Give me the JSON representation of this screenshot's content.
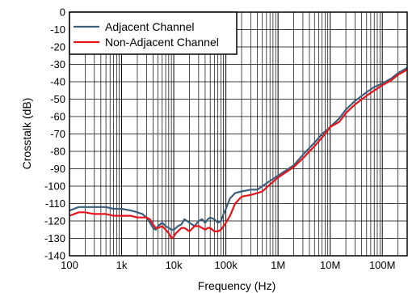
{
  "chart_data": {
    "type": "line",
    "title": "",
    "xlabel": "Frequency (Hz)",
    "ylabel": "Crosstalk (dB)",
    "x_scale": "log",
    "xlim": [
      100,
      300000000
    ],
    "ylim": [
      -140,
      0
    ],
    "grid": true,
    "legend_position": "top-left",
    "x_ticks": [
      {
        "value": 100,
        "label": "100"
      },
      {
        "value": 1000,
        "label": "1k"
      },
      {
        "value": 10000,
        "label": "10k"
      },
      {
        "value": 100000,
        "label": "100k"
      },
      {
        "value": 1000000,
        "label": "1M"
      },
      {
        "value": 10000000,
        "label": "10M"
      },
      {
        "value": 100000000,
        "label": "100M"
      }
    ],
    "y_ticks": [
      {
        "value": 0,
        "label": "0"
      },
      {
        "value": -10,
        "label": "-10"
      },
      {
        "value": -20,
        "label": "-20"
      },
      {
        "value": -30,
        "label": "-30"
      },
      {
        "value": -40,
        "label": "-40"
      },
      {
        "value": -50,
        "label": "-50"
      },
      {
        "value": -60,
        "label": "-60"
      },
      {
        "value": -70,
        "label": "-70"
      },
      {
        "value": -80,
        "label": "-80"
      },
      {
        "value": -90,
        "label": "-90"
      },
      {
        "value": -100,
        "label": "-100"
      },
      {
        "value": -110,
        "label": "-110"
      },
      {
        "value": -120,
        "label": "-120"
      },
      {
        "value": -130,
        "label": "-130"
      },
      {
        "value": -140,
        "label": "-140"
      }
    ],
    "series": [
      {
        "name": "Adjacent Channel",
        "color": "#3b5f7a",
        "points": [
          [
            100,
            -114
          ],
          [
            150,
            -112
          ],
          [
            200,
            -112
          ],
          [
            300,
            -112
          ],
          [
            500,
            -112
          ],
          [
            700,
            -113
          ],
          [
            1000,
            -113
          ],
          [
            1500,
            -114
          ],
          [
            2000,
            -115
          ],
          [
            2500,
            -116
          ],
          [
            3000,
            -118
          ],
          [
            3500,
            -121
          ],
          [
            4000,
            -124
          ],
          [
            4500,
            -125
          ],
          [
            5000,
            -123
          ],
          [
            6000,
            -121
          ],
          [
            7000,
            -123
          ],
          [
            8000,
            -124
          ],
          [
            9000,
            -125
          ],
          [
            10000,
            -125
          ],
          [
            12000,
            -123
          ],
          [
            14000,
            -122
          ],
          [
            16000,
            -119
          ],
          [
            18000,
            -120
          ],
          [
            20000,
            -121
          ],
          [
            25000,
            -123
          ],
          [
            30000,
            -120
          ],
          [
            35000,
            -119
          ],
          [
            40000,
            -121
          ],
          [
            45000,
            -119
          ],
          [
            50000,
            -118
          ],
          [
            60000,
            -119
          ],
          [
            70000,
            -121
          ],
          [
            80000,
            -120
          ],
          [
            90000,
            -116
          ],
          [
            100000,
            -113
          ],
          [
            120000,
            -107
          ],
          [
            150000,
            -104
          ],
          [
            200000,
            -103
          ],
          [
            300000,
            -102
          ],
          [
            400000,
            -102
          ],
          [
            500000,
            -100
          ],
          [
            700000,
            -97
          ],
          [
            1000000,
            -94
          ],
          [
            2000000,
            -88
          ],
          [
            3000000,
            -82
          ],
          [
            5000000,
            -75
          ],
          [
            7000000,
            -70
          ],
          [
            10000000,
            -66
          ],
          [
            15000000,
            -61
          ],
          [
            20000000,
            -56
          ],
          [
            30000000,
            -51
          ],
          [
            50000000,
            -46
          ],
          [
            70000000,
            -43
          ],
          [
            100000000,
            -41
          ],
          [
            150000000,
            -38
          ],
          [
            200000000,
            -35
          ],
          [
            300000000,
            -32
          ]
        ]
      },
      {
        "name": "Non-Adjacent Channel",
        "color": "#e8141c",
        "points": [
          [
            100,
            -117
          ],
          [
            150,
            -115
          ],
          [
            200,
            -115
          ],
          [
            300,
            -116
          ],
          [
            500,
            -116
          ],
          [
            700,
            -117
          ],
          [
            1000,
            -117
          ],
          [
            1500,
            -117
          ],
          [
            2000,
            -118
          ],
          [
            2500,
            -118
          ],
          [
            3000,
            -118
          ],
          [
            3500,
            -119
          ],
          [
            4000,
            -122
          ],
          [
            4500,
            -124
          ],
          [
            5000,
            -124
          ],
          [
            6000,
            -123
          ],
          [
            7000,
            -125
          ],
          [
            8000,
            -127
          ],
          [
            9000,
            -130
          ],
          [
            10000,
            -129
          ],
          [
            11000,
            -127
          ],
          [
            12000,
            -126
          ],
          [
            14000,
            -124
          ],
          [
            16000,
            -124
          ],
          [
            18000,
            -125
          ],
          [
            20000,
            -126
          ],
          [
            25000,
            -123
          ],
          [
            30000,
            -123
          ],
          [
            35000,
            -124
          ],
          [
            40000,
            -125
          ],
          [
            45000,
            -124
          ],
          [
            50000,
            -124
          ],
          [
            60000,
            -126
          ],
          [
            70000,
            -126
          ],
          [
            80000,
            -125
          ],
          [
            90000,
            -123
          ],
          [
            100000,
            -121
          ],
          [
            120000,
            -117
          ],
          [
            150000,
            -110
          ],
          [
            200000,
            -106
          ],
          [
            300000,
            -105
          ],
          [
            400000,
            -104
          ],
          [
            500000,
            -103
          ],
          [
            700000,
            -99
          ],
          [
            1000000,
            -95
          ],
          [
            2000000,
            -89
          ],
          [
            3000000,
            -84
          ],
          [
            5000000,
            -77
          ],
          [
            7000000,
            -72
          ],
          [
            10000000,
            -66
          ],
          [
            15000000,
            -63
          ],
          [
            20000000,
            -58
          ],
          [
            30000000,
            -53
          ],
          [
            50000000,
            -48
          ],
          [
            70000000,
            -45
          ],
          [
            100000000,
            -42
          ],
          [
            150000000,
            -39
          ],
          [
            200000000,
            -36
          ],
          [
            300000000,
            -33
          ]
        ]
      }
    ]
  }
}
